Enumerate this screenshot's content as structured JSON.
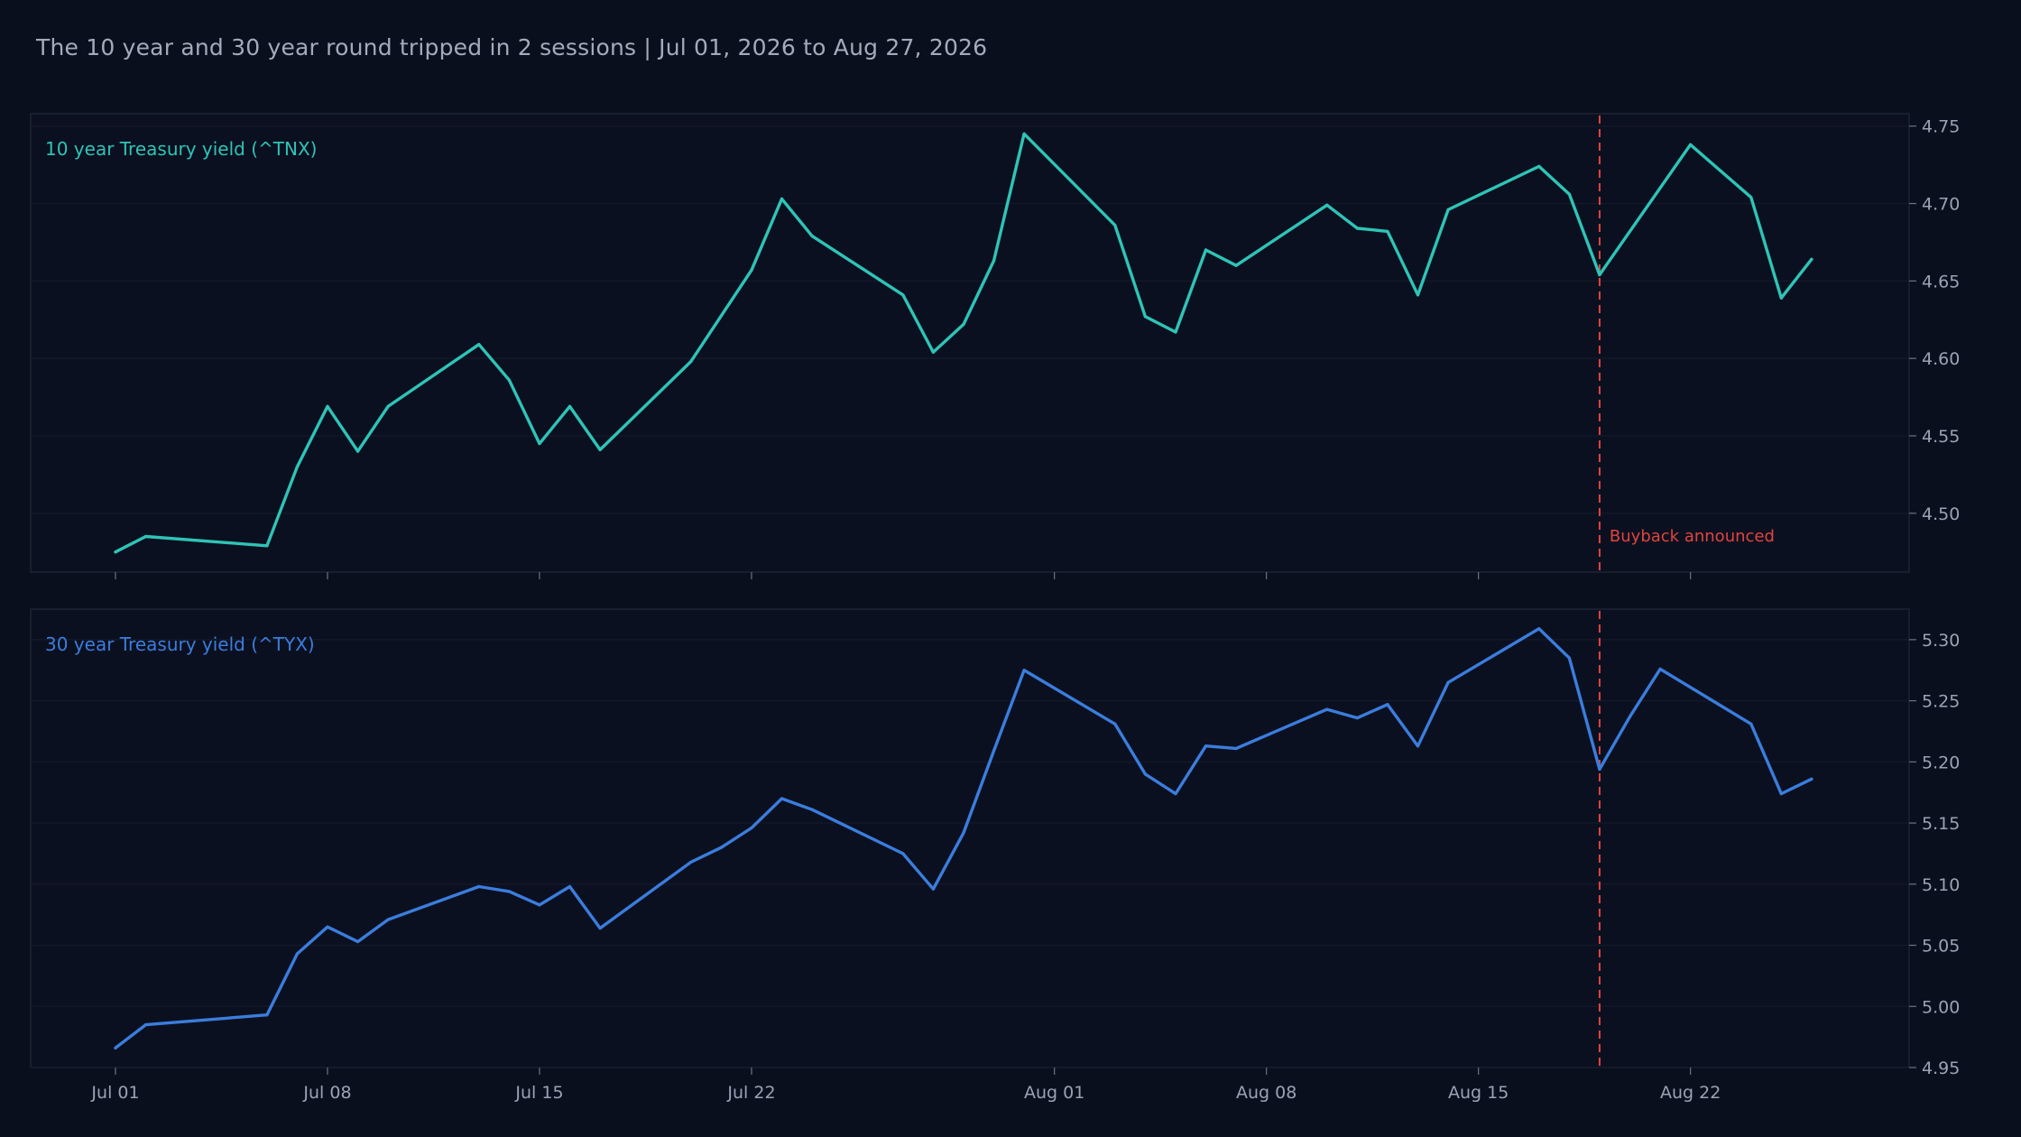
{
  "title": "The 10 year and 30 year round tripped in 2 sessions | Jul 01, 2026 to Aug 27, 2026",
  "colors": {
    "background": "#0a0f1e",
    "tnx": "#2ec4b6",
    "tyx": "#3b7ddd",
    "event": "#e0443e",
    "axis_text": "#9aa3b4"
  },
  "chart_data": [
    {
      "type": "line",
      "label": "10 year Treasury yield (^TNX)",
      "x_ticks": [
        "Jul 01",
        "Jul 08",
        "Jul 15",
        "Jul 22",
        "Aug 01",
        "Aug 08",
        "Aug 15",
        "Aug 22"
      ],
      "x_tick_days": [
        0,
        7,
        14,
        21,
        31,
        38,
        45,
        52
      ],
      "y_ticks": [
        "4.50",
        "4.55",
        "4.60",
        "4.65",
        "4.70",
        "4.75"
      ],
      "ylim": [
        4.462,
        4.758
      ],
      "grid": true,
      "annotation": {
        "label": "Buyback announced",
        "day": 49
      },
      "series": [
        {
          "x": [
            0,
            1,
            5,
            6,
            7,
            8,
            9,
            12,
            13,
            14,
            15,
            16,
            19,
            21,
            22,
            23,
            26,
            27,
            28,
            29,
            30,
            33,
            34,
            35,
            36,
            37,
            40,
            41,
            42,
            43,
            44,
            47,
            48,
            49,
            52,
            53,
            54,
            55,
            56
          ],
          "values": [
            4.475,
            4.485,
            4.479,
            4.53,
            4.569,
            4.54,
            4.569,
            4.609,
            4.586,
            4.545,
            4.569,
            4.541,
            4.598,
            4.657,
            4.703,
            4.679,
            4.641,
            4.604,
            4.622,
            4.663,
            4.745,
            4.686,
            4.627,
            4.617,
            4.67,
            4.66,
            4.699,
            4.684,
            4.682,
            4.641,
            4.696,
            4.724,
            4.706,
            4.654,
            4.738,
            4.721,
            4.704,
            4.639,
            4.664
          ]
        }
      ]
    },
    {
      "type": "line",
      "label": "30 year Treasury yield (^TYX)",
      "x_ticks": [
        "Jul 01",
        "Jul 08",
        "Jul 15",
        "Jul 22",
        "Aug 01",
        "Aug 08",
        "Aug 15",
        "Aug 22"
      ],
      "x_tick_days": [
        0,
        7,
        14,
        21,
        31,
        38,
        45,
        52
      ],
      "y_ticks": [
        "4.95",
        "5.00",
        "5.05",
        "5.10",
        "5.15",
        "5.20",
        "5.25",
        "5.30"
      ],
      "ylim": [
        4.95,
        5.325
      ],
      "grid": true,
      "annotation": {
        "day": 49
      },
      "series": [
        {
          "x": [
            0,
            1,
            5,
            6,
            7,
            8,
            9,
            12,
            13,
            14,
            15,
            16,
            19,
            20,
            21,
            22,
            23,
            26,
            27,
            28,
            29,
            30,
            33,
            34,
            35,
            36,
            37,
            40,
            41,
            42,
            43,
            44,
            47,
            48,
            49,
            50,
            51,
            54,
            55,
            56
          ],
          "values": [
            4.966,
            4.985,
            4.993,
            5.043,
            5.065,
            5.053,
            5.071,
            5.098,
            5.094,
            5.083,
            5.098,
            5.064,
            5.118,
            5.13,
            5.146,
            5.17,
            5.161,
            5.125,
            5.096,
            5.142,
            5.209,
            5.275,
            5.231,
            5.19,
            5.174,
            5.213,
            5.211,
            5.243,
            5.236,
            5.247,
            5.213,
            5.265,
            5.309,
            5.285,
            5.194,
            5.237,
            5.276,
            5.231,
            5.174,
            5.186
          ]
        }
      ]
    }
  ]
}
